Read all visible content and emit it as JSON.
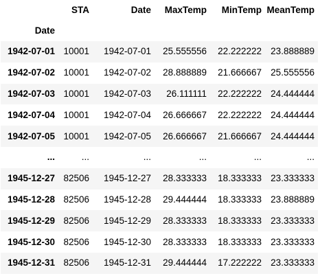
{
  "table": {
    "columns": [
      "STA",
      "Date",
      "MaxTemp",
      "MinTemp",
      "MeanTemp"
    ],
    "index_name": "Date",
    "rows": [
      {
        "index": "1942-07-01",
        "cells": [
          "10001",
          "1942-07-01",
          "25.555556",
          "22.222222",
          "23.888889"
        ]
      },
      {
        "index": "1942-07-02",
        "cells": [
          "10001",
          "1942-07-02",
          "28.888889",
          "21.666667",
          "25.555556"
        ]
      },
      {
        "index": "1942-07-03",
        "cells": [
          "10001",
          "1942-07-03",
          "26.111111",
          "22.222222",
          "24.444444"
        ]
      },
      {
        "index": "1942-07-04",
        "cells": [
          "10001",
          "1942-07-04",
          "26.666667",
          "22.222222",
          "24.444444"
        ]
      },
      {
        "index": "1942-07-05",
        "cells": [
          "10001",
          "1942-07-05",
          "26.666667",
          "21.666667",
          "24.444444"
        ]
      },
      {
        "index": "...",
        "cells": [
          "...",
          "...",
          "...",
          "...",
          "..."
        ]
      },
      {
        "index": "1945-12-27",
        "cells": [
          "82506",
          "1945-12-27",
          "28.333333",
          "18.333333",
          "23.333333"
        ]
      },
      {
        "index": "1945-12-28",
        "cells": [
          "82506",
          "1945-12-28",
          "29.444444",
          "18.333333",
          "23.888889"
        ]
      },
      {
        "index": "1945-12-29",
        "cells": [
          "82506",
          "1945-12-29",
          "28.333333",
          "18.333333",
          "23.333333"
        ]
      },
      {
        "index": "1945-12-30",
        "cells": [
          "82506",
          "1945-12-30",
          "28.333333",
          "18.333333",
          "23.333333"
        ]
      },
      {
        "index": "1945-12-31",
        "cells": [
          "82506",
          "1945-12-31",
          "29.444444",
          "17.222222",
          "23.333333"
        ]
      }
    ]
  },
  "colors": {
    "striped_row": "#f5f5f5",
    "background": "#ffffff",
    "text": "#000000"
  }
}
